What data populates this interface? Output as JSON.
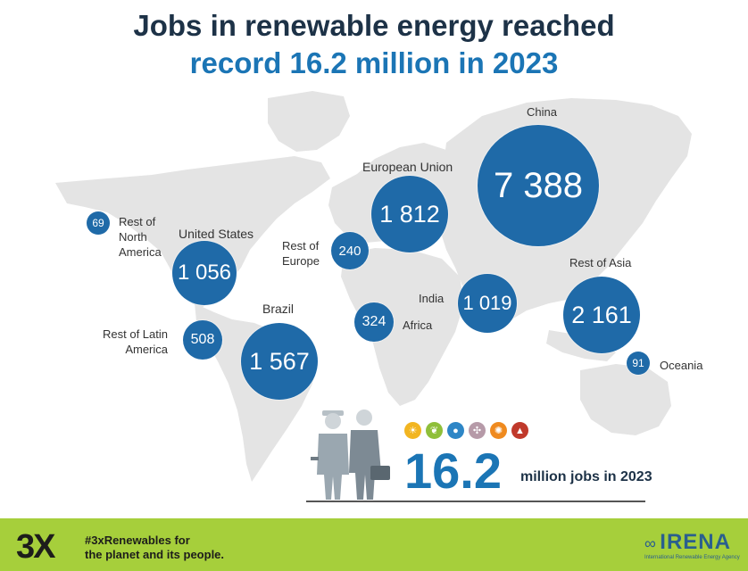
{
  "title_line1": "Jobs in renewable energy reached",
  "title_line2": "record 16.2 million in 2023",
  "regions": [
    {
      "value": "69",
      "label": "Rest of\nNorth\nAmerica"
    },
    {
      "value": "1 056",
      "label": "United States"
    },
    {
      "value": "508",
      "label": "Rest of Latin\nAmerica"
    },
    {
      "value": "1 567",
      "label": "Brazil"
    },
    {
      "value": "240",
      "label": "Rest of\nEurope"
    },
    {
      "value": "1 812",
      "label": "European Union"
    },
    {
      "value": "324",
      "label": "Africa"
    },
    {
      "value": "1 019",
      "label": "India"
    },
    {
      "value": "7 388",
      "label": "China"
    },
    {
      "value": "2 161",
      "label": "Rest of Asia"
    },
    {
      "value": "91",
      "label": "Oceania"
    }
  ],
  "total": {
    "value": "16.2",
    "text": "million jobs in 2023"
  },
  "tech_icons": [
    "solar-icon",
    "bioenergy-icon",
    "hydropower-icon",
    "wind-icon",
    "geothermal-icon",
    "other-renewables-icon"
  ],
  "colors": {
    "bubble": "#1f6aa8",
    "title_dark": "#1d3247",
    "title_blue": "#1b75b5",
    "footer": "#a6cf3b",
    "map": "#e3e3e3"
  },
  "footer": {
    "logo": "3X",
    "tagline_1": "#3xRenewables for",
    "tagline_2": "the planet and its people.",
    "brand": "IRENA",
    "brand_sub": "International Renewable Energy Agency"
  }
}
